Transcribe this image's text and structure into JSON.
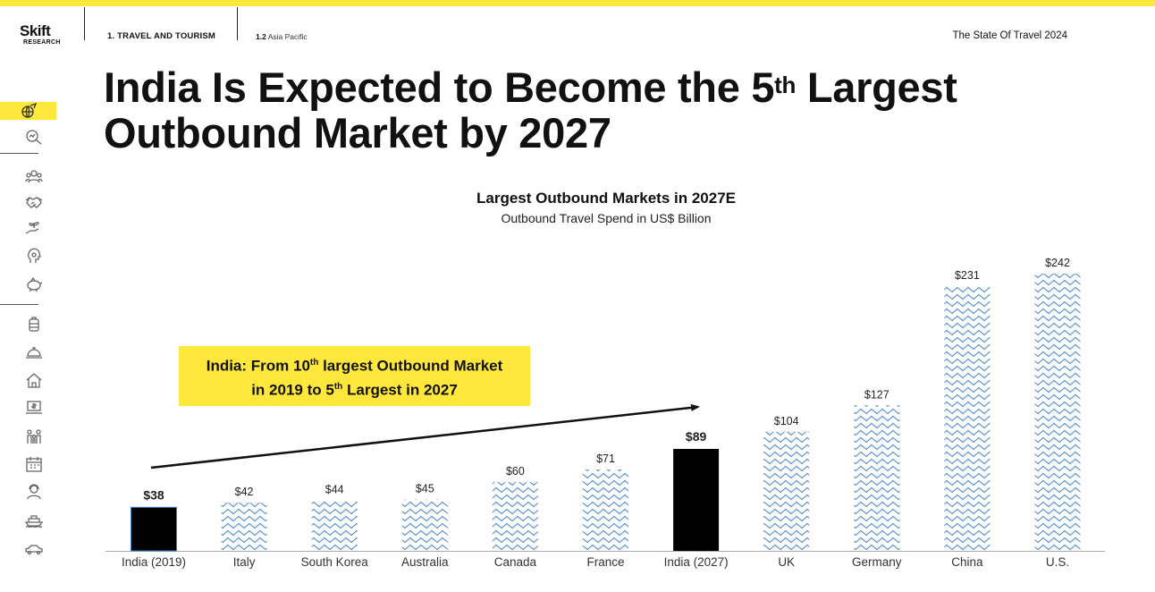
{
  "header": {
    "logo": "Skift",
    "logo_sub": "RESEARCH",
    "section": "1. TRAVEL AND TOURISM",
    "subsection_num": "1.2",
    "subsection_name": "Asia Pacific",
    "report_title": "The State Of Travel 2024"
  },
  "slide": {
    "title_line1_a": "India Is Expected to Become the 5",
    "title_line1_sup": "th",
    "title_line1_b": " Largest",
    "title_line2": "Outbound Market by 2027"
  },
  "callout": {
    "line1_a": "India: From 10",
    "line1_sup": "th",
    "line1_b": " largest Outbound Market",
    "line2_a": "in 2019 to 5",
    "line2_sup": "th",
    "line2_b": " Largest in 2027"
  },
  "sidebar": {
    "icons": [
      "globe-plane-icon",
      "magnifier-chart-icon",
      "people-group-icon",
      "handshake-icon",
      "hand-plant-icon",
      "head-gear-icon",
      "piggy-bank-icon",
      "luggage-icon",
      "service-bell-icon",
      "house-icon",
      "laptop-money-icon",
      "family-icon",
      "calendar-icon",
      "person-headset-icon",
      "cruise-ship-icon",
      "car-icon"
    ],
    "active": 0
  },
  "chart_data": {
    "type": "bar",
    "title": "Largest Outbound Markets in 2027E",
    "subtitle": "Outbound Travel Spend in US$ Billion",
    "categories": [
      "India (2019)",
      "Italy",
      "South Korea",
      "Australia",
      "Canada",
      "France",
      "India (2027)",
      "UK",
      "Germany",
      "China",
      "U.S."
    ],
    "values": [
      38,
      42,
      44,
      45,
      60,
      71,
      89,
      104,
      127,
      231,
      242
    ],
    "labels": [
      "$38",
      "$42",
      "$44",
      "$45",
      "$60",
      "$71",
      "$89",
      "$104",
      "$127",
      "$231",
      "$242"
    ],
    "highlighted": [
      "India (2019)",
      "India (2027)"
    ],
    "ylim": [
      0,
      242
    ],
    "xlabel": "",
    "ylabel": "",
    "grid": false,
    "colors": {
      "highlight": "#000000",
      "pattern_stroke": "#3a7fd0",
      "axis": "#aaaaaa"
    }
  }
}
